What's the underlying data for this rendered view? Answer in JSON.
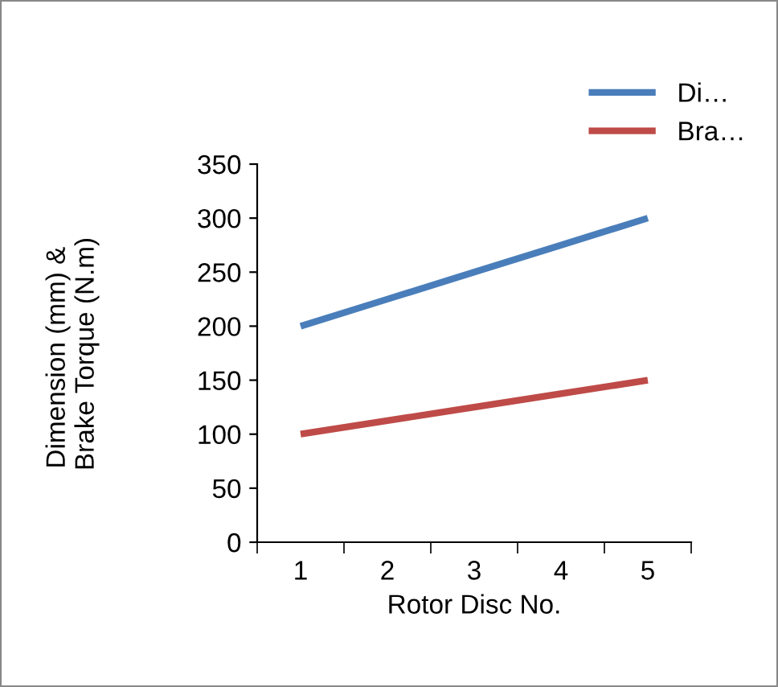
{
  "chart_data": {
    "type": "line",
    "xlabel": "Rotor Disc No.",
    "ylabel": "Dimension (mm) & Brake Torque (N.m)",
    "categories": [
      "1",
      "2",
      "3",
      "4",
      "5"
    ],
    "series": [
      {
        "name": "Di…",
        "color": "#4a7ebb",
        "values": [
          200,
          225,
          250,
          275,
          300
        ]
      },
      {
        "name": "Bra…",
        "color": "#be4b48",
        "values": [
          100,
          112.5,
          125,
          137.5,
          150
        ]
      }
    ],
    "ylim": [
      0,
      350
    ],
    "yticks": [
      0,
      50,
      100,
      150,
      200,
      250,
      300,
      350
    ],
    "grid": false,
    "legend": "top right",
    "marker": "none",
    "line_style": "solid"
  }
}
